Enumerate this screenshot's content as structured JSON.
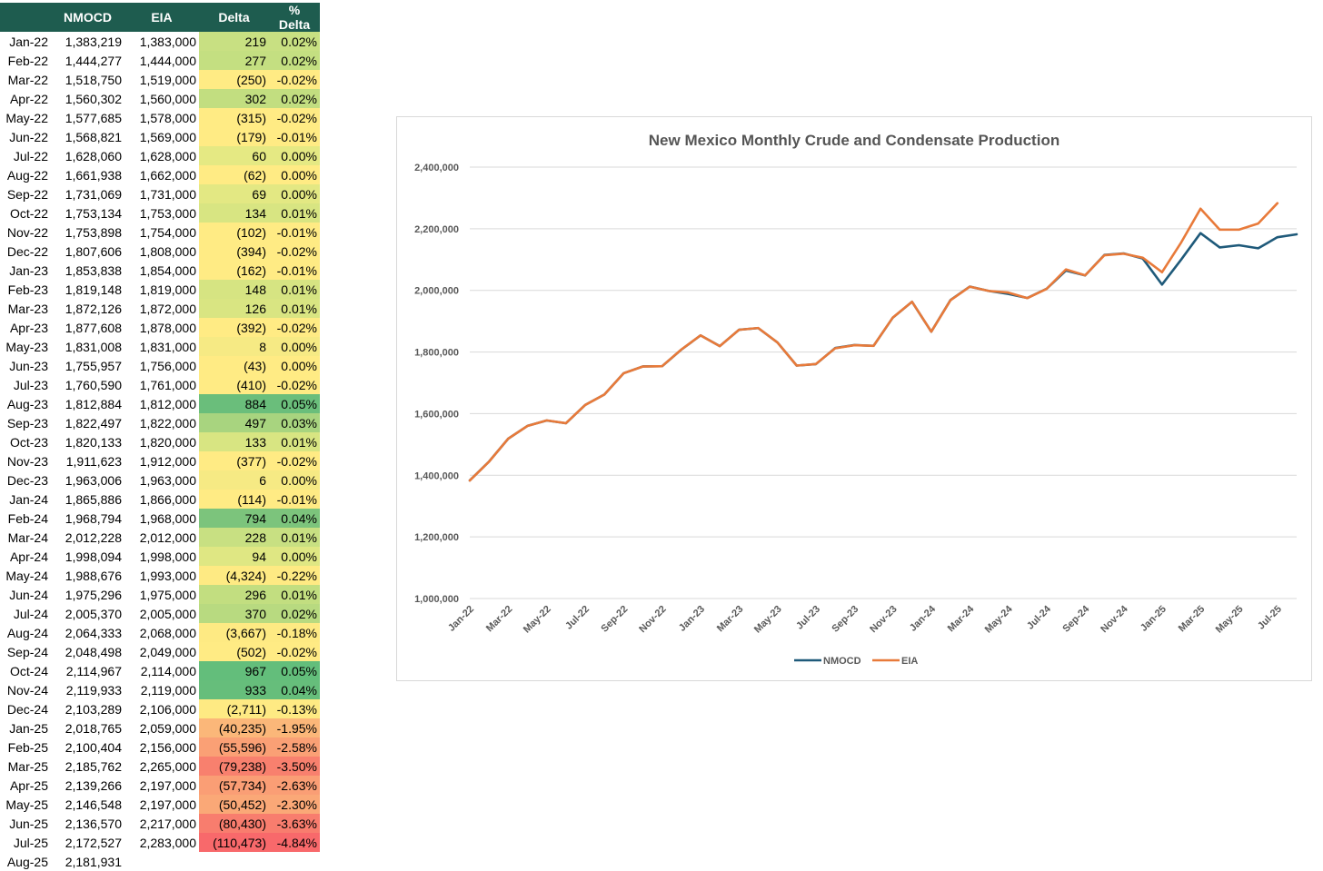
{
  "table": {
    "headers": [
      "",
      "NMOCD",
      "EIA",
      "Delta",
      "% Delta"
    ],
    "rows": [
      {
        "month": "Jan-22",
        "nmocd": "1,383,219",
        "eia": "1,383,000",
        "delta": "219",
        "pct": "0.02%",
        "color": "#c8e082"
      },
      {
        "month": "Feb-22",
        "nmocd": "1,444,277",
        "eia": "1,444,000",
        "delta": "277",
        "pct": "0.02%",
        "color": "#c4df81"
      },
      {
        "month": "Mar-22",
        "nmocd": "1,518,750",
        "eia": "1,519,000",
        "delta": "(250)",
        "pct": "-0.02%",
        "color": "#ffeb84"
      },
      {
        "month": "Apr-22",
        "nmocd": "1,560,302",
        "eia": "1,560,000",
        "delta": "302",
        "pct": "0.02%",
        "color": "#c2de80"
      },
      {
        "month": "May-22",
        "nmocd": "1,577,685",
        "eia": "1,578,000",
        "delta": "(315)",
        "pct": "-0.02%",
        "color": "#ffeb84"
      },
      {
        "month": "Jun-22",
        "nmocd": "1,568,821",
        "eia": "1,569,000",
        "delta": "(179)",
        "pct": "-0.01%",
        "color": "#ffeb84"
      },
      {
        "month": "Jul-22",
        "nmocd": "1,628,060",
        "eia": "1,628,000",
        "delta": "60",
        "pct": "0.00%",
        "color": "#e5e983"
      },
      {
        "month": "Aug-22",
        "nmocd": "1,661,938",
        "eia": "1,662,000",
        "delta": "(62)",
        "pct": "0.00%",
        "color": "#ffeb84"
      },
      {
        "month": "Sep-22",
        "nmocd": "1,731,069",
        "eia": "1,731,000",
        "delta": "69",
        "pct": "0.00%",
        "color": "#e3e883"
      },
      {
        "month": "Oct-22",
        "nmocd": "1,753,134",
        "eia": "1,753,000",
        "delta": "134",
        "pct": "0.01%",
        "color": "#d8e582"
      },
      {
        "month": "Nov-22",
        "nmocd": "1,753,898",
        "eia": "1,754,000",
        "delta": "(102)",
        "pct": "-0.01%",
        "color": "#ffeb84"
      },
      {
        "month": "Dec-22",
        "nmocd": "1,807,606",
        "eia": "1,808,000",
        "delta": "(394)",
        "pct": "-0.02%",
        "color": "#ffeb84"
      },
      {
        "month": "Jan-23",
        "nmocd": "1,853,838",
        "eia": "1,854,000",
        "delta": "(162)",
        "pct": "-0.01%",
        "color": "#ffeb84"
      },
      {
        "month": "Feb-23",
        "nmocd": "1,819,148",
        "eia": "1,819,000",
        "delta": "148",
        "pct": "0.01%",
        "color": "#d6e482"
      },
      {
        "month": "Mar-23",
        "nmocd": "1,872,126",
        "eia": "1,872,000",
        "delta": "126",
        "pct": "0.01%",
        "color": "#d9e582"
      },
      {
        "month": "Apr-23",
        "nmocd": "1,877,608",
        "eia": "1,878,000",
        "delta": "(392)",
        "pct": "-0.02%",
        "color": "#ffeb84"
      },
      {
        "month": "May-23",
        "nmocd": "1,831,008",
        "eia": "1,831,000",
        "delta": "8",
        "pct": "0.00%",
        "color": "#f6ea84"
      },
      {
        "month": "Jun-23",
        "nmocd": "1,755,957",
        "eia": "1,756,000",
        "delta": "(43)",
        "pct": "0.00%",
        "color": "#ffeb84"
      },
      {
        "month": "Jul-23",
        "nmocd": "1,760,590",
        "eia": "1,761,000",
        "delta": "(410)",
        "pct": "-0.02%",
        "color": "#ffeb84"
      },
      {
        "month": "Aug-23",
        "nmocd": "1,812,884",
        "eia": "1,812,000",
        "delta": "884",
        "pct": "0.05%",
        "color": "#6abe7b"
      },
      {
        "month": "Sep-23",
        "nmocd": "1,822,497",
        "eia": "1,822,000",
        "delta": "497",
        "pct": "0.03%",
        "color": "#a8d47f"
      },
      {
        "month": "Oct-23",
        "nmocd": "1,820,133",
        "eia": "1,820,000",
        "delta": "133",
        "pct": "0.01%",
        "color": "#d8e582"
      },
      {
        "month": "Nov-23",
        "nmocd": "1,911,623",
        "eia": "1,912,000",
        "delta": "(377)",
        "pct": "-0.02%",
        "color": "#ffeb84"
      },
      {
        "month": "Dec-23",
        "nmocd": "1,963,006",
        "eia": "1,963,000",
        "delta": "6",
        "pct": "0.00%",
        "color": "#f6ea84"
      },
      {
        "month": "Jan-24",
        "nmocd": "1,865,886",
        "eia": "1,866,000",
        "delta": "(114)",
        "pct": "-0.01%",
        "color": "#ffeb84"
      },
      {
        "month": "Feb-24",
        "nmocd": "1,968,794",
        "eia": "1,968,000",
        "delta": "794",
        "pct": "0.04%",
        "color": "#7cc47c"
      },
      {
        "month": "Mar-24",
        "nmocd": "2,012,228",
        "eia": "2,012,000",
        "delta": "228",
        "pct": "0.01%",
        "color": "#c8e082"
      },
      {
        "month": "Apr-24",
        "nmocd": "1,998,094",
        "eia": "1,998,000",
        "delta": "94",
        "pct": "0.00%",
        "color": "#dfe783"
      },
      {
        "month": "May-24",
        "nmocd": "1,988,676",
        "eia": "1,993,000",
        "delta": "(4,324)",
        "pct": "-0.22%",
        "color": "#feea83"
      },
      {
        "month": "Jun-24",
        "nmocd": "1,975,296",
        "eia": "1,975,000",
        "delta": "296",
        "pct": "0.01%",
        "color": "#c2de80"
      },
      {
        "month": "Jul-24",
        "nmocd": "2,005,370",
        "eia": "2,005,000",
        "delta": "370",
        "pct": "0.02%",
        "color": "#b8da80"
      },
      {
        "month": "Aug-24",
        "nmocd": "2,064,333",
        "eia": "2,068,000",
        "delta": "(3,667)",
        "pct": "-0.18%",
        "color": "#feea83"
      },
      {
        "month": "Sep-24",
        "nmocd": "2,048,498",
        "eia": "2,049,000",
        "delta": "(502)",
        "pct": "-0.02%",
        "color": "#ffeb84"
      },
      {
        "month": "Oct-24",
        "nmocd": "2,114,967",
        "eia": "2,114,000",
        "delta": "967",
        "pct": "0.05%",
        "color": "#63be7b"
      },
      {
        "month": "Nov-24",
        "nmocd": "2,119,933",
        "eia": "2,119,000",
        "delta": "933",
        "pct": "0.04%",
        "color": "#66be7b"
      },
      {
        "month": "Dec-24",
        "nmocd": "2,103,289",
        "eia": "2,106,000",
        "delta": "(2,711)",
        "pct": "-0.13%",
        "color": "#feea83"
      },
      {
        "month": "Jan-25",
        "nmocd": "2,018,765",
        "eia": "2,059,000",
        "delta": "(40,235)",
        "pct": "-1.95%",
        "color": "#fbb779"
      },
      {
        "month": "Feb-25",
        "nmocd": "2,100,404",
        "eia": "2,156,000",
        "delta": "(55,596)",
        "pct": "-2.58%",
        "color": "#faa075"
      },
      {
        "month": "Mar-25",
        "nmocd": "2,185,762",
        "eia": "2,265,000",
        "delta": "(79,238)",
        "pct": "-3.50%",
        "color": "#f8806e"
      },
      {
        "month": "Apr-25",
        "nmocd": "2,139,266",
        "eia": "2,197,000",
        "delta": "(57,734)",
        "pct": "-2.63%",
        "color": "#fa9e75"
      },
      {
        "month": "May-25",
        "nmocd": "2,146,548",
        "eia": "2,197,000",
        "delta": "(50,452)",
        "pct": "-2.30%",
        "color": "#faa877"
      },
      {
        "month": "Jun-25",
        "nmocd": "2,136,570",
        "eia": "2,217,000",
        "delta": "(80,430)",
        "pct": "-3.63%",
        "color": "#f87d6e"
      },
      {
        "month": "Jul-25",
        "nmocd": "2,172,527",
        "eia": "2,283,000",
        "delta": "(110,473)",
        "pct": "-4.84%",
        "color": "#f8696b"
      },
      {
        "month": "Aug-25",
        "nmocd": "2,181,931",
        "eia": "",
        "delta": "",
        "pct": "",
        "color": "#ffffff"
      }
    ]
  },
  "chart_data": {
    "type": "line",
    "title": "New Mexico Monthly Crude and Condensate Production",
    "xlabel": "",
    "ylabel": "",
    "ylim": [
      1000000,
      2400000
    ],
    "yticks": [
      "1,000,000",
      "1,200,000",
      "1,400,000",
      "1,600,000",
      "1,800,000",
      "2,000,000",
      "2,200,000",
      "2,400,000"
    ],
    "ytick_values": [
      1000000,
      1200000,
      1400000,
      1600000,
      1800000,
      2000000,
      2200000,
      2400000
    ],
    "categories": [
      "Jan-22",
      "Feb-22",
      "Mar-22",
      "Apr-22",
      "May-22",
      "Jun-22",
      "Jul-22",
      "Aug-22",
      "Sep-22",
      "Oct-22",
      "Nov-22",
      "Dec-22",
      "Jan-23",
      "Feb-23",
      "Mar-23",
      "Apr-23",
      "May-23",
      "Jun-23",
      "Jul-23",
      "Aug-23",
      "Sep-23",
      "Oct-23",
      "Nov-23",
      "Dec-23",
      "Jan-24",
      "Feb-24",
      "Mar-24",
      "Apr-24",
      "May-24",
      "Jun-24",
      "Jul-24",
      "Aug-24",
      "Sep-24",
      "Oct-24",
      "Nov-24",
      "Dec-24",
      "Jan-25",
      "Feb-25",
      "Mar-25",
      "Apr-25",
      "May-25",
      "Jun-25",
      "Jul-25",
      "Aug-25"
    ],
    "xtick_labels": [
      "Jan-22",
      "Mar-22",
      "May-22",
      "Jul-22",
      "Sep-22",
      "Nov-22",
      "Jan-23",
      "Mar-23",
      "May-23",
      "Jul-23",
      "Sep-23",
      "Nov-23",
      "Jan-24",
      "Mar-24",
      "May-24",
      "Jul-24",
      "Sep-24",
      "Nov-24",
      "Jan-25",
      "Mar-25",
      "May-25",
      "Jul-25"
    ],
    "grid": true,
    "legend": "bottom",
    "series": [
      {
        "name": "NMOCD",
        "color": "#1f5a7a",
        "values": [
          1383219,
          1444277,
          1518750,
          1560302,
          1577685,
          1568821,
          1628060,
          1661938,
          1731069,
          1753134,
          1753898,
          1807606,
          1853838,
          1819148,
          1872126,
          1877608,
          1831008,
          1755957,
          1760590,
          1812884,
          1822497,
          1820133,
          1911623,
          1963006,
          1865886,
          1968794,
          2012228,
          1998094,
          1988676,
          1975296,
          2005370,
          2064333,
          2048498,
          2114967,
          2119933,
          2103289,
          2018765,
          2100404,
          2185762,
          2139266,
          2146548,
          2136570,
          2172527,
          2181931
        ]
      },
      {
        "name": "EIA",
        "color": "#e87a3a",
        "values": [
          1383000,
          1444000,
          1519000,
          1560000,
          1578000,
          1569000,
          1628000,
          1662000,
          1731000,
          1753000,
          1754000,
          1808000,
          1854000,
          1819000,
          1872000,
          1878000,
          1831000,
          1756000,
          1761000,
          1812000,
          1822000,
          1820000,
          1912000,
          1963000,
          1866000,
          1968000,
          2012000,
          1998000,
          1993000,
          1975000,
          2005000,
          2068000,
          2049000,
          2114000,
          2119000,
          2106000,
          2059000,
          2156000,
          2265000,
          2197000,
          2197000,
          2217000,
          2283000,
          null
        ]
      }
    ]
  }
}
